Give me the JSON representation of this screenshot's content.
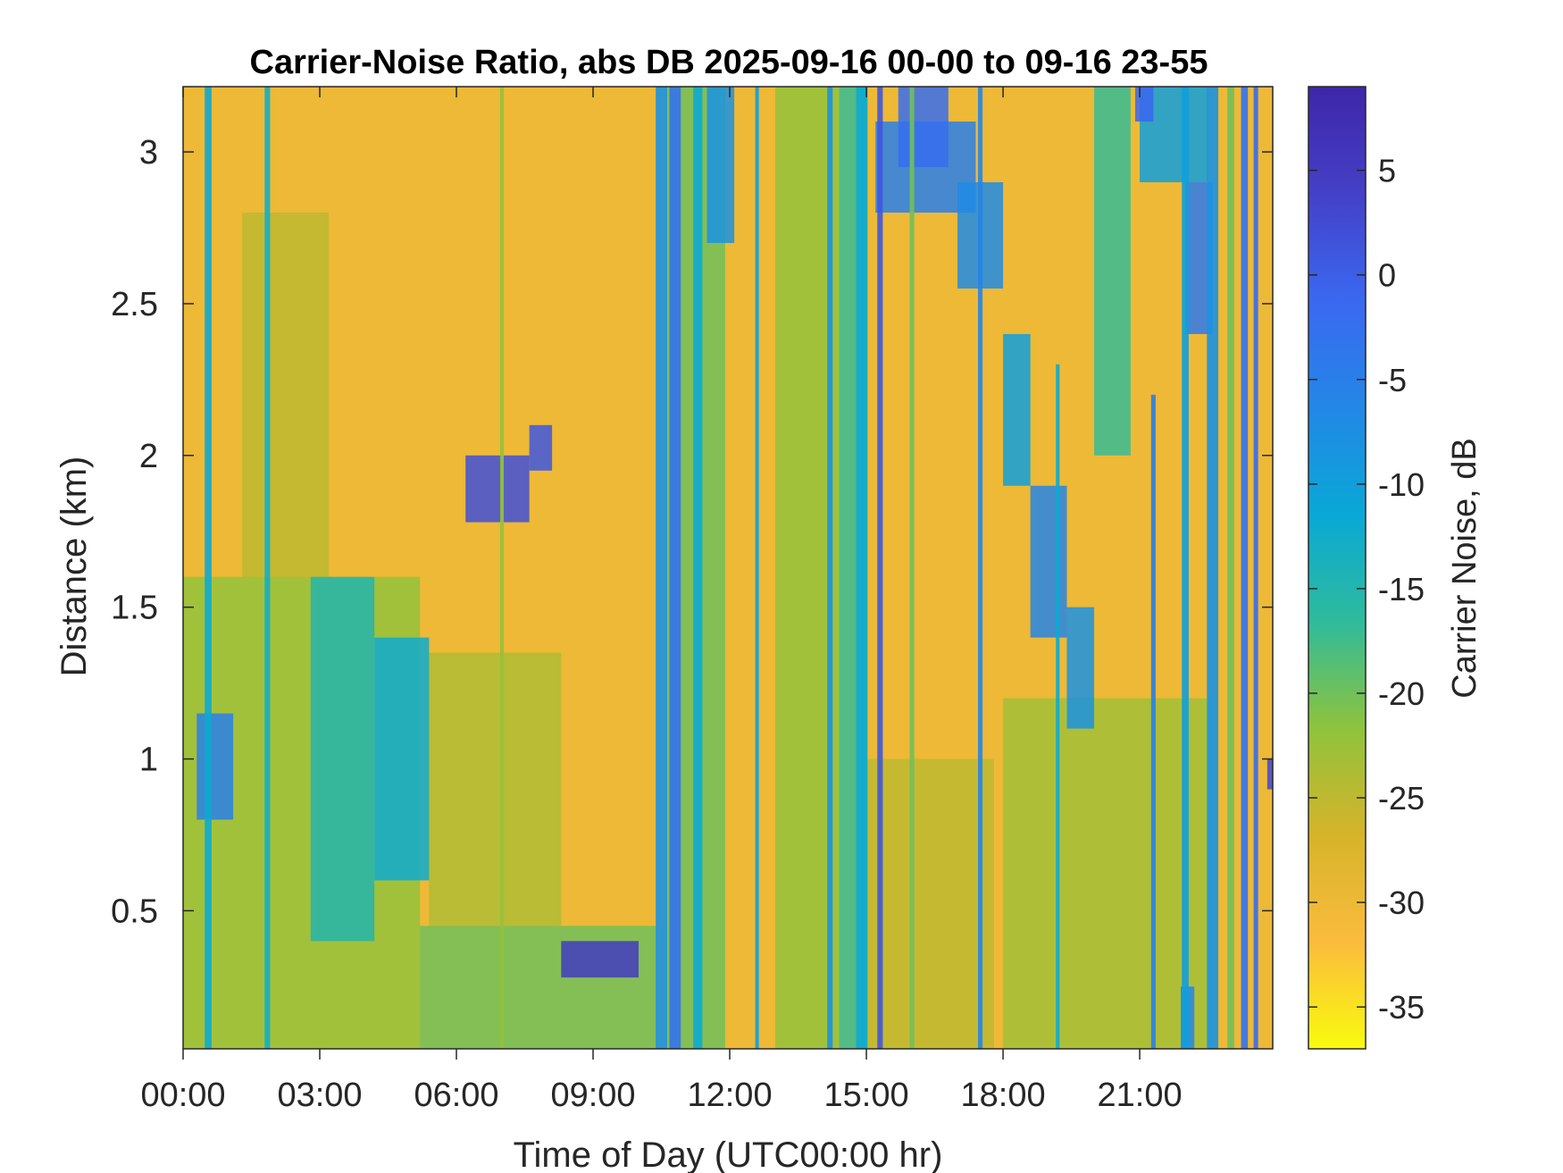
{
  "chart_data": {
    "type": "heatmap",
    "title": "Carrier-Noise Ratio, abs DB 2025-09-16 00-00 to 09-16 23-55",
    "xlabel": "Time of Day (UTC00:00 hr)",
    "ylabel": "Distance (km)",
    "colorbar_label": "Carrier Noise, dB",
    "x_unit": "hours UTC",
    "xlim": [
      0,
      23.92
    ],
    "ylim": [
      0.045,
      3.215
    ],
    "clim": [
      -37,
      9
    ],
    "colormap": "parula (reversed): yellow = low, dark blue = high",
    "colormap_stops": [
      "#f9fb0e",
      "#fbbc3d",
      "#d6b42a",
      "#8fc33c",
      "#2fbb9c",
      "#09a8d6",
      "#2387e6",
      "#3b68f0",
      "#4440c8",
      "#3e26a8"
    ],
    "x_ticks": [
      {
        "value": 0,
        "label": "00:00"
      },
      {
        "value": 3,
        "label": "03:00"
      },
      {
        "value": 6,
        "label": "06:00"
      },
      {
        "value": 9,
        "label": "09:00"
      },
      {
        "value": 12,
        "label": "12:00"
      },
      {
        "value": 15,
        "label": "15:00"
      },
      {
        "value": 18,
        "label": "18:00"
      },
      {
        "value": 21,
        "label": "21:00"
      }
    ],
    "y_ticks": [
      {
        "value": 0.5,
        "label": "0.5"
      },
      {
        "value": 1,
        "label": "1"
      },
      {
        "value": 1.5,
        "label": "1.5"
      },
      {
        "value": 2,
        "label": "2"
      },
      {
        "value": 2.5,
        "label": "2.5"
      },
      {
        "value": 3,
        "label": "3"
      }
    ],
    "colorbar_ticks": [
      {
        "value": 5,
        "label": "5"
      },
      {
        "value": 0,
        "label": "0"
      },
      {
        "value": -5,
        "label": "-5"
      },
      {
        "value": -10,
        "label": "-10"
      },
      {
        "value": -15,
        "label": "-15"
      },
      {
        "value": -20,
        "label": "-20"
      },
      {
        "value": -25,
        "label": "-25"
      },
      {
        "value": -30,
        "label": "-30"
      },
      {
        "value": -35,
        "label": "-35"
      }
    ],
    "background_value": -30,
    "grid": false,
    "approximate_regions": [
      {
        "t0": 0.0,
        "t1": 5.2,
        "d0": 0.045,
        "d1": 1.6,
        "value": -22
      },
      {
        "t0": 5.2,
        "t1": 10.4,
        "d0": 0.045,
        "d1": 0.45,
        "value": -20
      },
      {
        "t0": 5.4,
        "t1": 8.3,
        "d0": 0.45,
        "d1": 1.35,
        "value": -24
      },
      {
        "t0": 10.6,
        "t1": 11.9,
        "d0": 0.045,
        "d1": 3.215,
        "value": -20
      },
      {
        "t0": 13.0,
        "t1": 14.4,
        "d0": 0.045,
        "d1": 3.215,
        "value": -22
      },
      {
        "t0": 14.4,
        "t1": 15.0,
        "d0": 0.045,
        "d1": 3.215,
        "value": -17
      },
      {
        "t0": 15.0,
        "t1": 17.8,
        "d0": 0.045,
        "d1": 1.0,
        "value": -25
      },
      {
        "t0": 18.0,
        "t1": 22.6,
        "d0": 0.045,
        "d1": 1.2,
        "value": -23
      },
      {
        "t0": 20.0,
        "t1": 20.8,
        "d0": 2.0,
        "d1": 3.215,
        "value": -17
      },
      {
        "t0": 1.3,
        "t1": 3.2,
        "d0": 1.6,
        "d1": 2.8,
        "value": -25
      },
      {
        "t0": 2.8,
        "t1": 4.2,
        "d0": 0.4,
        "d1": 1.6,
        "value": -15
      },
      {
        "t0": 4.2,
        "t1": 5.4,
        "d0": 0.6,
        "d1": 1.4,
        "value": -12
      },
      {
        "t0": 0.3,
        "t1": 1.1,
        "d0": 0.8,
        "d1": 1.15,
        "value": -5
      },
      {
        "t0": 6.2,
        "t1": 7.6,
        "d0": 1.78,
        "d1": 2.0,
        "value": 2
      },
      {
        "t0": 7.6,
        "t1": 8.1,
        "d0": 1.95,
        "d1": 2.1,
        "value": 1
      },
      {
        "t0": 8.3,
        "t1": 10.0,
        "d0": 0.28,
        "d1": 0.4,
        "value": 5
      },
      {
        "t0": 11.5,
        "t1": 12.1,
        "d0": 2.7,
        "d1": 3.215,
        "value": -8
      },
      {
        "t0": 15.2,
        "t1": 17.4,
        "d0": 2.8,
        "d1": 3.1,
        "value": -5
      },
      {
        "t0": 15.7,
        "t1": 16.8,
        "d0": 2.95,
        "d1": 3.215,
        "value": -2
      },
      {
        "t0": 17.0,
        "t1": 18.0,
        "d0": 2.55,
        "d1": 2.9,
        "value": -7
      },
      {
        "t0": 18.0,
        "t1": 18.6,
        "d0": 1.9,
        "d1": 2.4,
        "value": -10
      },
      {
        "t0": 18.6,
        "t1": 19.4,
        "d0": 1.4,
        "d1": 1.9,
        "value": -6
      },
      {
        "t0": 19.4,
        "t1": 20.0,
        "d0": 1.1,
        "d1": 1.5,
        "value": -8
      },
      {
        "t0": 21.0,
        "t1": 22.5,
        "d0": 2.9,
        "d1": 3.215,
        "value": -10
      },
      {
        "t0": 22.0,
        "t1": 22.6,
        "d0": 2.4,
        "d1": 2.9,
        "value": -4
      },
      {
        "t0": 20.9,
        "t1": 21.3,
        "d0": 3.1,
        "d1": 3.215,
        "value": -1
      },
      {
        "t0": 21.9,
        "t1": 22.2,
        "d0": 0.045,
        "d1": 0.25,
        "value": -6
      },
      {
        "t0": 23.8,
        "t1": 23.92,
        "d0": 0.9,
        "d1": 1.0,
        "value": 3
      }
    ],
    "approximate_streaks": [
      {
        "t": 0.55,
        "width": 0.15,
        "value": -12,
        "d1": 3.215
      },
      {
        "t": 1.85,
        "width": 0.12,
        "value": -13,
        "d1": 3.215
      },
      {
        "t": 7.0,
        "width": 0.08,
        "value": -22,
        "d1": 3.215
      },
      {
        "t": 10.5,
        "width": 0.25,
        "value": -8,
        "d1": 3.215
      },
      {
        "t": 10.8,
        "width": 0.25,
        "value": -3,
        "d1": 3.215
      },
      {
        "t": 11.3,
        "width": 0.2,
        "value": -12,
        "d1": 3.215
      },
      {
        "t": 12.6,
        "width": 0.08,
        "value": -10,
        "d1": 3.215
      },
      {
        "t": 14.2,
        "width": 0.12,
        "value": -8,
        "d1": 3.215
      },
      {
        "t": 14.9,
        "width": 0.25,
        "value": -12,
        "d1": 3.215
      },
      {
        "t": 15.3,
        "width": 0.12,
        "value": 1,
        "d1": 3.215
      },
      {
        "t": 16.0,
        "width": 0.1,
        "value": -20,
        "d1": 3.215
      },
      {
        "t": 17.5,
        "width": 0.1,
        "value": -6,
        "d1": 3.215
      },
      {
        "t": 19.2,
        "width": 0.08,
        "value": -12,
        "d1": 2.3
      },
      {
        "t": 21.3,
        "width": 0.1,
        "value": -5,
        "d1": 2.2
      },
      {
        "t": 22.0,
        "width": 0.15,
        "value": -10,
        "d1": 3.215
      },
      {
        "t": 22.6,
        "width": 0.25,
        "value": -8,
        "d1": 3.215
      },
      {
        "t": 23.0,
        "width": 0.15,
        "value": -20,
        "d1": 3.215
      },
      {
        "t": 23.3,
        "width": 0.15,
        "value": -3,
        "d1": 3.215
      },
      {
        "t": 23.55,
        "width": 0.1,
        "value": -2,
        "d1": 3.215
      }
    ]
  }
}
